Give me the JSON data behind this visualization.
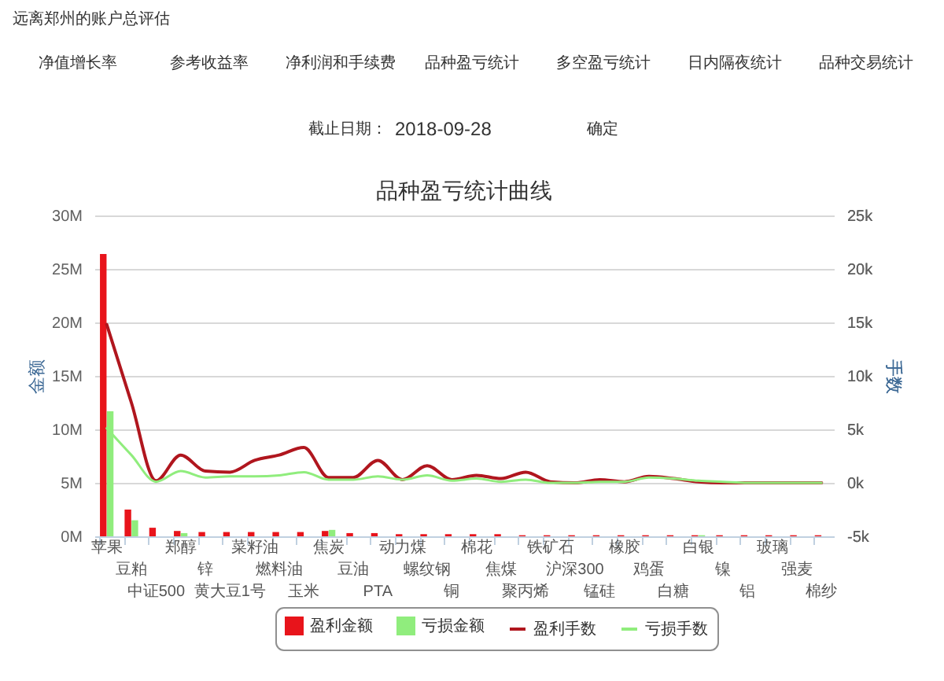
{
  "chart_data": {
    "type": "bar",
    "title": "品种盈亏统计曲线",
    "ylabel": "金额",
    "y2label": "手数",
    "categories": [
      "苹果",
      "豆粕",
      "中证500",
      "郑醇",
      "锌",
      "黄大豆1号",
      "菜籽油",
      "燃料油",
      "玉米",
      "焦炭",
      "豆油",
      "PTA",
      "动力煤",
      "螺纹钢",
      "铜",
      "棉花",
      "焦煤",
      "聚丙烯",
      "铁矿石",
      "沪深300",
      "锰硅",
      "橡胶",
      "鸡蛋",
      "白糖",
      "白银",
      "镍",
      "铝",
      "玻璃",
      "强麦",
      "棉纱"
    ],
    "series": [
      {
        "name": "盈利金额",
        "color": "#e8141b",
        "values": [
          26400000,
          2500000,
          800000,
          500000,
          400000,
          400000,
          400000,
          400000,
          400000,
          500000,
          300000,
          300000,
          200000,
          200000,
          200000,
          200000,
          200000,
          100000,
          100000,
          100000,
          100000,
          100000,
          100000,
          100000,
          100000,
          100000,
          100000,
          100000,
          100000,
          100000
        ]
      },
      {
        "name": "亏损金额",
        "color": "#90ed7d",
        "values": [
          11700000,
          1500000,
          0,
          300000,
          0,
          0,
          0,
          0,
          0,
          600000,
          0,
          0,
          0,
          0,
          0,
          0,
          0,
          0,
          0,
          0,
          0,
          0,
          0,
          0,
          100000,
          0,
          0,
          0,
          0,
          0
        ]
      },
      {
        "name": "盈利手数",
        "type": "line",
        "axis": "y2",
        "color": "#b0161e",
        "values": [
          14800,
          7500,
          200,
          2600,
          1100,
          1000,
          2100,
          2600,
          3300,
          500,
          500,
          2100,
          300,
          1600,
          300,
          700,
          400,
          1000,
          100,
          0,
          300,
          100,
          600,
          400,
          100,
          0,
          0,
          0,
          0,
          0
        ]
      },
      {
        "name": "亏损手数",
        "type": "line",
        "axis": "y2",
        "color": "#90ed7d",
        "values": [
          5100,
          2600,
          100,
          1100,
          500,
          600,
          600,
          700,
          1000,
          300,
          300,
          600,
          300,
          700,
          200,
          400,
          100,
          300,
          0,
          0,
          100,
          100,
          500,
          400,
          200,
          100,
          0,
          0,
          0,
          0
        ]
      }
    ],
    "ylim": [
      0,
      30000000
    ],
    "yticks": [
      {
        "value": 0,
        "label": "0M"
      },
      {
        "value": 5000000,
        "label": "5M"
      },
      {
        "value": 10000000,
        "label": "10M"
      },
      {
        "value": 15000000,
        "label": "15M"
      },
      {
        "value": 20000000,
        "label": "20M"
      },
      {
        "value": 25000000,
        "label": "25M"
      },
      {
        "value": 30000000,
        "label": "30M"
      }
    ],
    "y2lim": [
      -5000,
      25000
    ],
    "y2ticks": [
      {
        "value": -5000,
        "label": "-5k"
      },
      {
        "value": 0,
        "label": "0k"
      },
      {
        "value": 5000,
        "label": "5k"
      },
      {
        "value": 10000,
        "label": "10k"
      },
      {
        "value": 15000,
        "label": "15k"
      },
      {
        "value": 20000,
        "label": "20k"
      },
      {
        "value": 25000,
        "label": "25k"
      }
    ],
    "grid": "y",
    "legend": "bottom",
    "annotations": [
      "远离郑州的账户总评估",
      "净值增长率",
      "参考收益率",
      "净利润和手续费",
      "品种盈亏统计",
      "多空盈亏统计",
      "日内隔夜统计",
      "品种交易统计",
      "截止日期：",
      "2018-09-28",
      "确定"
    ]
  }
}
